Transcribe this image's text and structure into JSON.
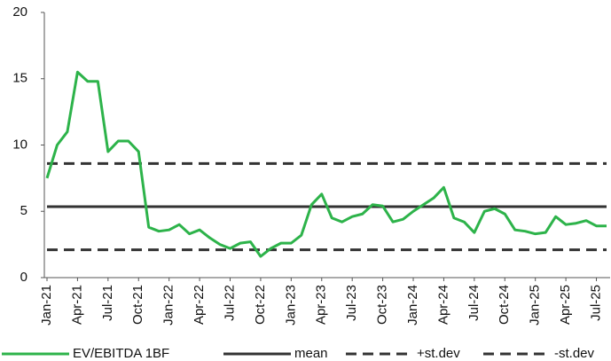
{
  "chart_data": {
    "type": "line",
    "categories": [
      "Jan-21",
      null,
      null,
      "Apr-21",
      null,
      null,
      "Jul-21",
      null,
      null,
      "Oct-21",
      null,
      null,
      "Jan-22",
      null,
      null,
      "Apr-22",
      null,
      null,
      "Jul-22",
      null,
      null,
      "Oct-22",
      null,
      null,
      "Jan-23",
      null,
      null,
      "Apr-23",
      null,
      null,
      "Jul-23",
      null,
      null,
      "Oct-23",
      null,
      null,
      "Jan-24",
      null,
      null,
      "Apr-24",
      null,
      null,
      "Jul-24",
      null,
      null,
      "Oct-24",
      null,
      null,
      "Jan-25",
      null,
      null,
      "Apr-25",
      null,
      null,
      "Jul-25",
      null
    ],
    "series": [
      {
        "name": "EV/EBITDA 1BF",
        "color": "#2db34a",
        "dash": false,
        "width": 3,
        "values": [
          7.5,
          10,
          11,
          15.5,
          14.8,
          14.8,
          9.5,
          10.3,
          10.3,
          9.5,
          3.8,
          3.5,
          3.6,
          4.0,
          3.3,
          3.6,
          3.0,
          2.5,
          2.2,
          2.6,
          2.7,
          1.6,
          2.2,
          2.6,
          2.6,
          3.2,
          5.5,
          6.3,
          4.5,
          4.2,
          4.6,
          4.8,
          5.5,
          5.4,
          4.2,
          4.4,
          5.0,
          5.5,
          6.0,
          6.8,
          4.5,
          4.2,
          3.4,
          5.0,
          5.2,
          4.8,
          3.6,
          3.5,
          3.3,
          3.4,
          4.6,
          4.0,
          4.1,
          4.3,
          3.9,
          3.9
        ]
      },
      {
        "name": "mean",
        "color": "#333333",
        "dash": false,
        "width": 3,
        "values": [
          5.35,
          5.35,
          5.35,
          5.35,
          5.35,
          5.35,
          5.35,
          5.35,
          5.35,
          5.35,
          5.35,
          5.35,
          5.35,
          5.35,
          5.35,
          5.35,
          5.35,
          5.35,
          5.35,
          5.35,
          5.35,
          5.35,
          5.35,
          5.35,
          5.35,
          5.35,
          5.35,
          5.35,
          5.35,
          5.35,
          5.35,
          5.35,
          5.35,
          5.35,
          5.35,
          5.35,
          5.35,
          5.35,
          5.35,
          5.35,
          5.35,
          5.35,
          5.35,
          5.35,
          5.35,
          5.35,
          5.35,
          5.35,
          5.35,
          5.35,
          5.35,
          5.35,
          5.35,
          5.35,
          5.35,
          5.35
        ]
      },
      {
        "name": "+st.dev",
        "color": "#333333",
        "dash": true,
        "width": 3,
        "values": [
          8.6,
          8.6,
          8.6,
          8.6,
          8.6,
          8.6,
          8.6,
          8.6,
          8.6,
          8.6,
          8.6,
          8.6,
          8.6,
          8.6,
          8.6,
          8.6,
          8.6,
          8.6,
          8.6,
          8.6,
          8.6,
          8.6,
          8.6,
          8.6,
          8.6,
          8.6,
          8.6,
          8.6,
          8.6,
          8.6,
          8.6,
          8.6,
          8.6,
          8.6,
          8.6,
          8.6,
          8.6,
          8.6,
          8.6,
          8.6,
          8.6,
          8.6,
          8.6,
          8.6,
          8.6,
          8.6,
          8.6,
          8.6,
          8.6,
          8.6,
          8.6,
          8.6,
          8.6,
          8.6,
          8.6,
          8.6
        ]
      },
      {
        "name": "-st.dev",
        "color": "#333333",
        "dash": true,
        "width": 3,
        "values": [
          2.1,
          2.1,
          2.1,
          2.1,
          2.1,
          2.1,
          2.1,
          2.1,
          2.1,
          2.1,
          2.1,
          2.1,
          2.1,
          2.1,
          2.1,
          2.1,
          2.1,
          2.1,
          2.1,
          2.1,
          2.1,
          2.1,
          2.1,
          2.1,
          2.1,
          2.1,
          2.1,
          2.1,
          2.1,
          2.1,
          2.1,
          2.1,
          2.1,
          2.1,
          2.1,
          2.1,
          2.1,
          2.1,
          2.1,
          2.1,
          2.1,
          2.1,
          2.1,
          2.1,
          2.1,
          2.1,
          2.1,
          2.1,
          2.1,
          2.1,
          2.1,
          2.1,
          2.1,
          2.1,
          2.1,
          2.1
        ]
      }
    ],
    "ylim": [
      0,
      20
    ],
    "yticks": [
      0,
      5,
      10,
      15,
      20
    ],
    "grid": false,
    "legend": "bottom"
  }
}
